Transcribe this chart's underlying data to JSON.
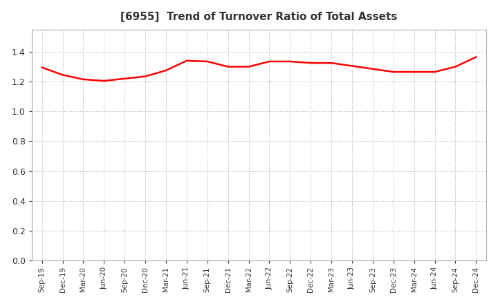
{
  "title": "[6955]  Trend of Turnover Ratio of Total Assets",
  "title_color": "#333333",
  "line_color": "#ff0000",
  "line_width": 1.8,
  "background_color": "#ffffff",
  "plot_bg_color": "#ffffff",
  "grid_color": "#aaaaaa",
  "ylim": [
    0.0,
    1.55
  ],
  "yticks": [
    0.0,
    0.2,
    0.4,
    0.6,
    0.8,
    1.0,
    1.2,
    1.4
  ],
  "x_labels": [
    "Sep-19",
    "Dec-19",
    "Mar-20",
    "Jun-20",
    "Sep-20",
    "Dec-20",
    "Mar-21",
    "Jun-21",
    "Sep-21",
    "Dec-21",
    "Mar-22",
    "Jun-22",
    "Sep-22",
    "Dec-22",
    "Mar-23",
    "Jun-23",
    "Sep-23",
    "Dec-23",
    "Mar-24",
    "Jun-24",
    "Sep-24",
    "Dec-24"
  ],
  "values": [
    1.295,
    1.245,
    1.215,
    1.205,
    1.22,
    1.235,
    1.275,
    1.34,
    1.335,
    1.3,
    1.3,
    1.335,
    1.335,
    1.325,
    1.325,
    1.305,
    1.285,
    1.265,
    1.265,
    1.265,
    1.3,
    1.365
  ]
}
